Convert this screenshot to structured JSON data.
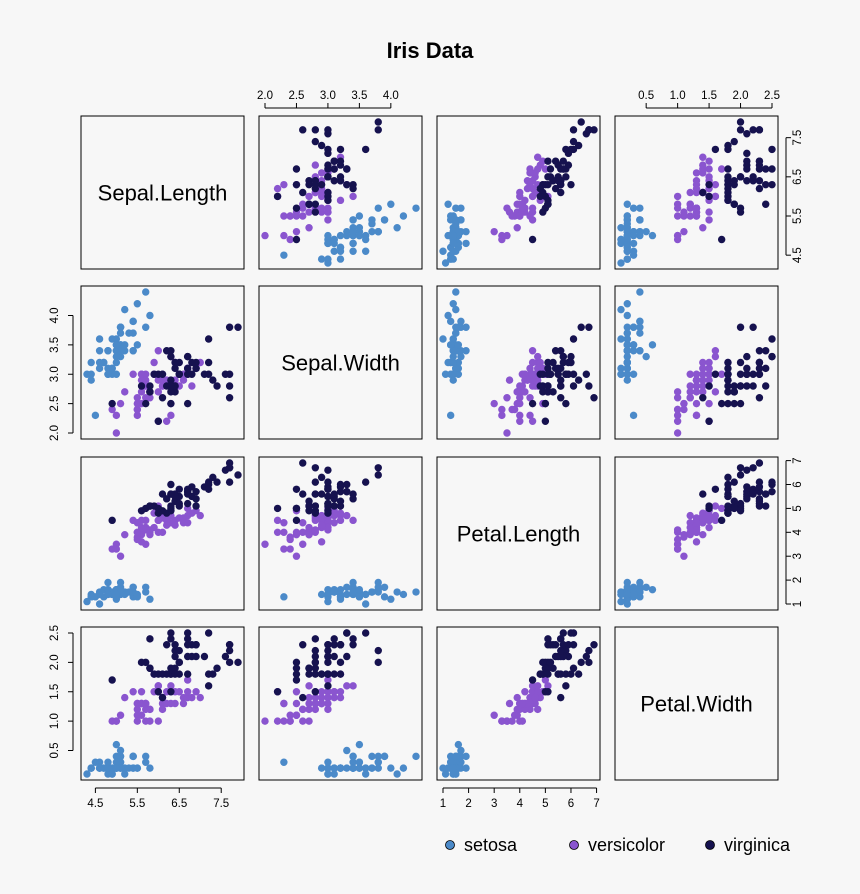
{
  "chart_data": {
    "type": "scatter",
    "title": "Iris Data",
    "variables": [
      "Sepal.Length",
      "Sepal.Width",
      "Petal.Length",
      "Petal.Width"
    ],
    "ranges": [
      [
        4.3,
        7.9
      ],
      [
        2.0,
        4.4
      ],
      [
        1.0,
        6.9
      ],
      [
        0.1,
        2.5
      ]
    ],
    "ticks": [
      [
        "4.5",
        "5.5",
        "6.5",
        "7.5"
      ],
      [
        "2.0",
        "2.5",
        "3.0",
        "3.5",
        "4.0"
      ],
      [
        "1",
        "2",
        "3",
        "4",
        "5",
        "6",
        "7"
      ],
      [
        "0.5",
        "1.0",
        "1.5",
        "2.0",
        "2.5"
      ]
    ],
    "legend": {
      "position": "bottom-right",
      "labels": [
        "setosa",
        "versicolor",
        "virginica"
      ]
    },
    "colors": {
      "setosa": "#4b8ac9",
      "versicolor": "#8a55cf",
      "virginica": "#16124f",
      "background": "#f7f7f7"
    },
    "series": [
      {
        "name": "setosa",
        "points": [
          [
            5.1,
            3.5,
            1.4,
            0.2
          ],
          [
            4.9,
            3.0,
            1.4,
            0.2
          ],
          [
            4.7,
            3.2,
            1.3,
            0.2
          ],
          [
            4.6,
            3.1,
            1.5,
            0.2
          ],
          [
            5.0,
            3.6,
            1.4,
            0.2
          ],
          [
            5.4,
            3.9,
            1.7,
            0.4
          ],
          [
            4.6,
            3.4,
            1.4,
            0.3
          ],
          [
            5.0,
            3.4,
            1.5,
            0.2
          ],
          [
            4.4,
            2.9,
            1.4,
            0.2
          ],
          [
            4.9,
            3.1,
            1.5,
            0.1
          ],
          [
            5.4,
            3.7,
            1.5,
            0.2
          ],
          [
            4.8,
            3.4,
            1.6,
            0.2
          ],
          [
            4.8,
            3.0,
            1.4,
            0.1
          ],
          [
            4.3,
            3.0,
            1.1,
            0.1
          ],
          [
            5.8,
            4.0,
            1.2,
            0.2
          ],
          [
            5.7,
            4.4,
            1.5,
            0.4
          ],
          [
            5.4,
            3.9,
            1.3,
            0.4
          ],
          [
            5.1,
            3.5,
            1.4,
            0.3
          ],
          [
            5.7,
            3.8,
            1.7,
            0.3
          ],
          [
            5.1,
            3.8,
            1.5,
            0.3
          ],
          [
            5.4,
            3.4,
            1.7,
            0.2
          ],
          [
            5.1,
            3.7,
            1.5,
            0.4
          ],
          [
            4.6,
            3.6,
            1.0,
            0.2
          ],
          [
            5.1,
            3.3,
            1.7,
            0.5
          ],
          [
            4.8,
            3.4,
            1.9,
            0.2
          ],
          [
            5.0,
            3.0,
            1.6,
            0.2
          ],
          [
            5.0,
            3.4,
            1.6,
            0.4
          ],
          [
            5.2,
            3.5,
            1.5,
            0.2
          ],
          [
            5.2,
            3.4,
            1.4,
            0.2
          ],
          [
            4.7,
            3.2,
            1.6,
            0.2
          ],
          [
            4.8,
            3.1,
            1.6,
            0.2
          ],
          [
            5.4,
            3.4,
            1.5,
            0.4
          ],
          [
            5.2,
            4.1,
            1.5,
            0.1
          ],
          [
            5.5,
            4.2,
            1.4,
            0.2
          ],
          [
            4.9,
            3.1,
            1.5,
            0.2
          ],
          [
            5.0,
            3.2,
            1.2,
            0.2
          ],
          [
            5.5,
            3.5,
            1.3,
            0.2
          ],
          [
            4.9,
            3.6,
            1.4,
            0.1
          ],
          [
            4.4,
            3.0,
            1.3,
            0.2
          ],
          [
            5.1,
            3.4,
            1.5,
            0.2
          ],
          [
            5.0,
            3.5,
            1.3,
            0.3
          ],
          [
            4.5,
            2.3,
            1.3,
            0.3
          ],
          [
            4.4,
            3.2,
            1.3,
            0.2
          ],
          [
            5.0,
            3.5,
            1.6,
            0.6
          ],
          [
            5.1,
            3.8,
            1.9,
            0.4
          ],
          [
            4.8,
            3.0,
            1.4,
            0.3
          ],
          [
            5.1,
            3.8,
            1.6,
            0.2
          ],
          [
            4.6,
            3.2,
            1.4,
            0.2
          ],
          [
            5.3,
            3.7,
            1.5,
            0.2
          ],
          [
            5.0,
            3.3,
            1.4,
            0.2
          ]
        ]
      },
      {
        "name": "versicolor",
        "points": [
          [
            7.0,
            3.2,
            4.7,
            1.4
          ],
          [
            6.4,
            3.2,
            4.5,
            1.5
          ],
          [
            6.9,
            3.1,
            4.9,
            1.5
          ],
          [
            5.5,
            2.3,
            4.0,
            1.3
          ],
          [
            6.5,
            2.8,
            4.6,
            1.5
          ],
          [
            5.7,
            2.8,
            4.5,
            1.3
          ],
          [
            6.3,
            3.3,
            4.7,
            1.6
          ],
          [
            4.9,
            2.4,
            3.3,
            1.0
          ],
          [
            6.6,
            2.9,
            4.6,
            1.3
          ],
          [
            5.2,
            2.7,
            3.9,
            1.4
          ],
          [
            5.0,
            2.0,
            3.5,
            1.0
          ],
          [
            5.9,
            3.0,
            4.2,
            1.5
          ],
          [
            6.0,
            2.2,
            4.0,
            1.0
          ],
          [
            6.1,
            2.9,
            4.7,
            1.4
          ],
          [
            5.6,
            2.9,
            3.6,
            1.3
          ],
          [
            6.7,
            3.1,
            4.4,
            1.4
          ],
          [
            5.6,
            3.0,
            4.5,
            1.5
          ],
          [
            5.8,
            2.7,
            4.1,
            1.0
          ],
          [
            6.2,
            2.2,
            4.5,
            1.5
          ],
          [
            5.6,
            2.5,
            3.9,
            1.1
          ],
          [
            5.9,
            3.2,
            4.8,
            1.8
          ],
          [
            6.1,
            2.8,
            4.0,
            1.3
          ],
          [
            6.3,
            2.5,
            4.9,
            1.5
          ],
          [
            6.1,
            2.8,
            4.7,
            1.2
          ],
          [
            6.4,
            2.9,
            4.3,
            1.3
          ],
          [
            6.6,
            3.0,
            4.4,
            1.4
          ],
          [
            6.8,
            2.8,
            4.8,
            1.4
          ],
          [
            6.7,
            3.0,
            5.0,
            1.7
          ],
          [
            6.0,
            2.9,
            4.5,
            1.5
          ],
          [
            5.7,
            2.6,
            3.5,
            1.0
          ],
          [
            5.5,
            2.4,
            3.8,
            1.1
          ],
          [
            5.5,
            2.4,
            3.7,
            1.0
          ],
          [
            5.8,
            2.7,
            3.9,
            1.2
          ],
          [
            6.0,
            2.7,
            5.1,
            1.6
          ],
          [
            5.4,
            3.0,
            4.5,
            1.5
          ],
          [
            6.0,
            3.4,
            4.5,
            1.6
          ],
          [
            6.7,
            3.1,
            4.7,
            1.5
          ],
          [
            6.3,
            2.3,
            4.4,
            1.3
          ],
          [
            5.6,
            3.0,
            4.1,
            1.3
          ],
          [
            5.5,
            2.5,
            4.0,
            1.3
          ],
          [
            5.5,
            2.6,
            4.4,
            1.2
          ],
          [
            6.1,
            3.0,
            4.6,
            1.4
          ],
          [
            5.8,
            2.6,
            4.0,
            1.2
          ],
          [
            5.0,
            2.3,
            3.3,
            1.0
          ],
          [
            5.6,
            2.7,
            4.2,
            1.3
          ],
          [
            5.7,
            3.0,
            4.2,
            1.2
          ],
          [
            5.7,
            2.9,
            4.2,
            1.3
          ],
          [
            6.2,
            2.9,
            4.3,
            1.3
          ],
          [
            5.1,
            2.5,
            3.0,
            1.1
          ],
          [
            5.7,
            2.8,
            4.1,
            1.3
          ]
        ]
      },
      {
        "name": "virginica",
        "points": [
          [
            6.3,
            3.3,
            6.0,
            2.5
          ],
          [
            5.8,
            2.7,
            5.1,
            1.9
          ],
          [
            7.1,
            3.0,
            5.9,
            2.1
          ],
          [
            6.3,
            2.9,
            5.6,
            1.8
          ],
          [
            6.5,
            3.0,
            5.8,
            2.2
          ],
          [
            7.6,
            3.0,
            6.6,
            2.1
          ],
          [
            4.9,
            2.5,
            4.5,
            1.7
          ],
          [
            7.3,
            2.9,
            6.3,
            1.8
          ],
          [
            6.7,
            2.5,
            5.8,
            1.8
          ],
          [
            7.2,
            3.6,
            6.1,
            2.5
          ],
          [
            6.5,
            3.2,
            5.1,
            2.0
          ],
          [
            6.4,
            2.7,
            5.3,
            1.9
          ],
          [
            6.8,
            3.0,
            5.5,
            2.1
          ],
          [
            5.7,
            2.5,
            5.0,
            2.0
          ],
          [
            5.8,
            2.8,
            5.1,
            2.4
          ],
          [
            6.4,
            3.2,
            5.3,
            2.3
          ],
          [
            6.5,
            3.0,
            5.5,
            1.8
          ],
          [
            7.7,
            3.8,
            6.7,
            2.2
          ],
          [
            7.7,
            2.6,
            6.9,
            2.3
          ],
          [
            6.0,
            2.2,
            5.0,
            1.5
          ],
          [
            6.9,
            3.2,
            5.7,
            2.3
          ],
          [
            5.6,
            2.8,
            4.9,
            2.0
          ],
          [
            7.7,
            2.8,
            6.7,
            2.0
          ],
          [
            6.3,
            2.7,
            4.9,
            1.8
          ],
          [
            6.7,
            3.3,
            5.7,
            2.1
          ],
          [
            7.2,
            3.2,
            6.0,
            1.8
          ],
          [
            6.2,
            2.8,
            4.8,
            1.8
          ],
          [
            6.1,
            3.0,
            4.9,
            1.8
          ],
          [
            6.4,
            2.8,
            5.6,
            2.1
          ],
          [
            7.2,
            3.0,
            5.8,
            1.6
          ],
          [
            7.4,
            2.8,
            6.1,
            1.9
          ],
          [
            7.9,
            3.8,
            6.4,
            2.0
          ],
          [
            6.4,
            2.8,
            5.6,
            2.2
          ],
          [
            6.3,
            2.8,
            5.1,
            1.5
          ],
          [
            6.1,
            2.6,
            5.6,
            1.4
          ],
          [
            7.7,
            3.0,
            6.1,
            2.3
          ],
          [
            6.3,
            3.4,
            5.6,
            2.4
          ],
          [
            6.4,
            3.1,
            5.5,
            1.8
          ],
          [
            6.0,
            3.0,
            4.8,
            1.8
          ],
          [
            6.9,
            3.1,
            5.4,
            2.1
          ],
          [
            6.7,
            3.1,
            5.6,
            2.4
          ],
          [
            6.9,
            3.1,
            5.1,
            2.3
          ],
          [
            5.8,
            2.7,
            5.1,
            1.9
          ],
          [
            6.8,
            3.2,
            5.9,
            2.3
          ],
          [
            6.7,
            3.3,
            5.7,
            2.5
          ],
          [
            6.7,
            3.0,
            5.2,
            2.3
          ],
          [
            6.3,
            2.5,
            5.0,
            1.9
          ],
          [
            6.5,
            3.0,
            5.2,
            2.0
          ],
          [
            6.2,
            3.4,
            5.4,
            2.3
          ],
          [
            5.9,
            3.0,
            5.1,
            1.8
          ]
        ]
      }
    ]
  }
}
